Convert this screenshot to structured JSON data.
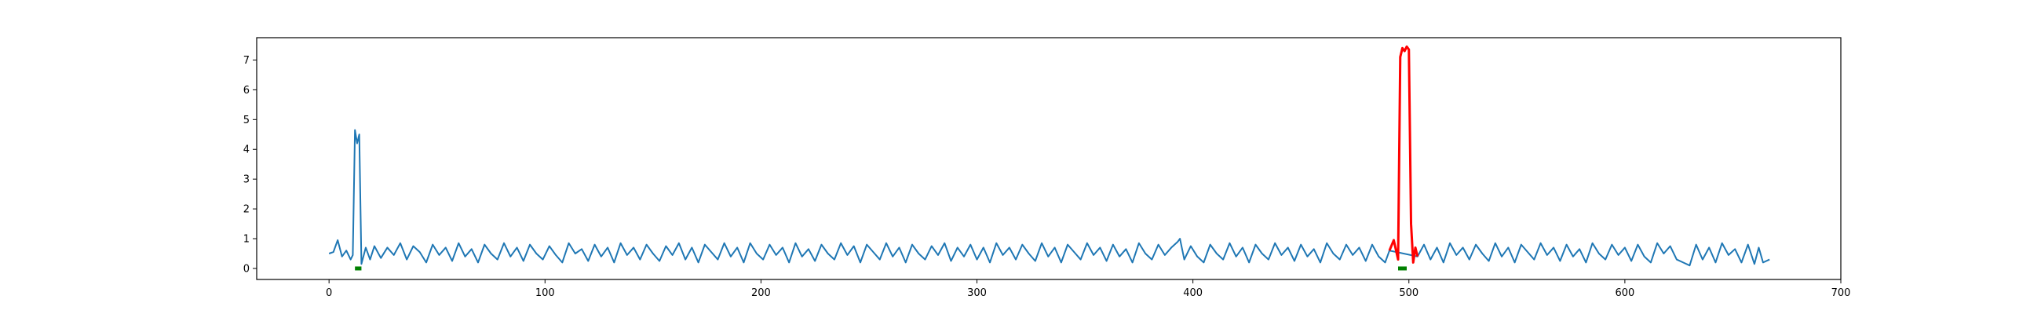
{
  "chart_data": {
    "type": "line",
    "title": "",
    "xlabel": "",
    "ylabel": "",
    "xlim": [
      -33.5,
      700
    ],
    "ylim": [
      -0.37,
      7.75
    ],
    "xticks": [
      0,
      100,
      200,
      300,
      400,
      500,
      600,
      700
    ],
    "yticks": [
      0,
      1,
      2,
      3,
      4,
      5,
      6,
      7
    ],
    "grid": false,
    "legend": "none",
    "colors": {
      "signal": "#1f77b4",
      "anomaly": "#ff0000",
      "marker": "#008000"
    },
    "series": [
      {
        "points": [
          [
            0,
            0.5
          ],
          [
            2,
            0.55
          ],
          [
            4,
            0.95
          ],
          [
            6,
            0.4
          ],
          [
            8,
            0.6
          ],
          [
            10,
            0.3
          ],
          [
            11,
            0.45
          ],
          [
            12,
            4.65
          ],
          [
            13,
            4.2
          ],
          [
            14,
            4.5
          ],
          [
            15,
            0.15
          ],
          [
            17,
            0.7
          ],
          [
            19,
            0.3
          ],
          [
            21,
            0.75
          ],
          [
            24,
            0.35
          ],
          [
            27,
            0.7
          ],
          [
            30,
            0.45
          ],
          [
            33,
            0.85
          ],
          [
            36,
            0.3
          ],
          [
            39,
            0.75
          ],
          [
            42,
            0.55
          ],
          [
            45,
            0.2
          ],
          [
            48,
            0.8
          ],
          [
            51,
            0.45
          ],
          [
            54,
            0.7
          ],
          [
            57,
            0.25
          ],
          [
            60,
            0.85
          ],
          [
            63,
            0.4
          ],
          [
            66,
            0.65
          ],
          [
            69,
            0.2
          ],
          [
            72,
            0.8
          ],
          [
            75,
            0.5
          ],
          [
            78,
            0.3
          ],
          [
            81,
            0.85
          ],
          [
            84,
            0.4
          ],
          [
            87,
            0.7
          ],
          [
            90,
            0.25
          ],
          [
            93,
            0.8
          ],
          [
            96,
            0.5
          ],
          [
            99,
            0.3
          ],
          [
            102,
            0.75
          ],
          [
            105,
            0.45
          ],
          [
            108,
            0.2
          ],
          [
            111,
            0.85
          ],
          [
            114,
            0.5
          ],
          [
            117,
            0.65
          ],
          [
            120,
            0.25
          ],
          [
            123,
            0.8
          ],
          [
            126,
            0.4
          ],
          [
            129,
            0.7
          ],
          [
            132,
            0.2
          ],
          [
            135,
            0.85
          ],
          [
            138,
            0.45
          ],
          [
            141,
            0.7
          ],
          [
            144,
            0.3
          ],
          [
            147,
            0.8
          ],
          [
            150,
            0.5
          ],
          [
            153,
            0.25
          ],
          [
            156,
            0.75
          ],
          [
            159,
            0.45
          ],
          [
            162,
            0.85
          ],
          [
            165,
            0.3
          ],
          [
            168,
            0.7
          ],
          [
            171,
            0.2
          ],
          [
            174,
            0.8
          ],
          [
            177,
            0.55
          ],
          [
            180,
            0.3
          ],
          [
            183,
            0.85
          ],
          [
            186,
            0.4
          ],
          [
            189,
            0.7
          ],
          [
            192,
            0.2
          ],
          [
            195,
            0.85
          ],
          [
            198,
            0.5
          ],
          [
            201,
            0.3
          ],
          [
            204,
            0.8
          ],
          [
            207,
            0.45
          ],
          [
            210,
            0.7
          ],
          [
            213,
            0.2
          ],
          [
            216,
            0.85
          ],
          [
            219,
            0.4
          ],
          [
            222,
            0.65
          ],
          [
            225,
            0.25
          ],
          [
            228,
            0.8
          ],
          [
            231,
            0.5
          ],
          [
            234,
            0.3
          ],
          [
            237,
            0.85
          ],
          [
            240,
            0.45
          ],
          [
            243,
            0.75
          ],
          [
            246,
            0.2
          ],
          [
            249,
            0.8
          ],
          [
            252,
            0.55
          ],
          [
            255,
            0.3
          ],
          [
            258,
            0.85
          ],
          [
            261,
            0.4
          ],
          [
            264,
            0.7
          ],
          [
            267,
            0.2
          ],
          [
            270,
            0.8
          ],
          [
            273,
            0.5
          ],
          [
            276,
            0.3
          ],
          [
            279,
            0.75
          ],
          [
            282,
            0.45
          ],
          [
            285,
            0.85
          ],
          [
            288,
            0.25
          ],
          [
            291,
            0.7
          ],
          [
            294,
            0.4
          ],
          [
            297,
            0.8
          ],
          [
            300,
            0.3
          ],
          [
            303,
            0.7
          ],
          [
            306,
            0.2
          ],
          [
            309,
            0.85
          ],
          [
            312,
            0.45
          ],
          [
            315,
            0.7
          ],
          [
            318,
            0.3
          ],
          [
            321,
            0.8
          ],
          [
            324,
            0.5
          ],
          [
            327,
            0.25
          ],
          [
            330,
            0.85
          ],
          [
            333,
            0.4
          ],
          [
            336,
            0.7
          ],
          [
            339,
            0.2
          ],
          [
            342,
            0.8
          ],
          [
            345,
            0.55
          ],
          [
            348,
            0.3
          ],
          [
            351,
            0.85
          ],
          [
            354,
            0.45
          ],
          [
            357,
            0.7
          ],
          [
            360,
            0.25
          ],
          [
            363,
            0.8
          ],
          [
            366,
            0.4
          ],
          [
            369,
            0.65
          ],
          [
            372,
            0.2
          ],
          [
            375,
            0.85
          ],
          [
            378,
            0.5
          ],
          [
            381,
            0.3
          ],
          [
            384,
            0.8
          ],
          [
            387,
            0.45
          ],
          [
            390,
            0.7
          ],
          [
            393,
            0.9
          ],
          [
            394,
            1.0
          ],
          [
            396,
            0.3
          ],
          [
            399,
            0.75
          ],
          [
            402,
            0.4
          ],
          [
            405,
            0.2
          ],
          [
            408,
            0.8
          ],
          [
            411,
            0.5
          ],
          [
            414,
            0.3
          ],
          [
            417,
            0.85
          ],
          [
            420,
            0.4
          ],
          [
            423,
            0.7
          ],
          [
            426,
            0.2
          ],
          [
            429,
            0.8
          ],
          [
            432,
            0.5
          ],
          [
            435,
            0.3
          ],
          [
            438,
            0.85
          ],
          [
            441,
            0.45
          ],
          [
            444,
            0.7
          ],
          [
            447,
            0.25
          ],
          [
            450,
            0.8
          ],
          [
            453,
            0.4
          ],
          [
            456,
            0.65
          ],
          [
            459,
            0.2
          ],
          [
            462,
            0.85
          ],
          [
            465,
            0.5
          ],
          [
            468,
            0.3
          ],
          [
            471,
            0.8
          ],
          [
            474,
            0.45
          ],
          [
            477,
            0.7
          ],
          [
            480,
            0.25
          ],
          [
            483,
            0.8
          ],
          [
            486,
            0.4
          ],
          [
            489,
            0.2
          ],
          [
            491,
            0.6
          ],
          [
            504,
            0.4
          ],
          [
            507,
            0.8
          ],
          [
            510,
            0.3
          ],
          [
            513,
            0.7
          ],
          [
            516,
            0.2
          ],
          [
            519,
            0.85
          ],
          [
            522,
            0.45
          ],
          [
            525,
            0.7
          ],
          [
            528,
            0.3
          ],
          [
            531,
            0.8
          ],
          [
            534,
            0.5
          ],
          [
            537,
            0.25
          ],
          [
            540,
            0.85
          ],
          [
            543,
            0.4
          ],
          [
            546,
            0.7
          ],
          [
            549,
            0.2
          ],
          [
            552,
            0.8
          ],
          [
            555,
            0.55
          ],
          [
            558,
            0.3
          ],
          [
            561,
            0.85
          ],
          [
            564,
            0.45
          ],
          [
            567,
            0.7
          ],
          [
            570,
            0.25
          ],
          [
            573,
            0.8
          ],
          [
            576,
            0.4
          ],
          [
            579,
            0.65
          ],
          [
            582,
            0.2
          ],
          [
            585,
            0.85
          ],
          [
            588,
            0.5
          ],
          [
            591,
            0.3
          ],
          [
            594,
            0.8
          ],
          [
            597,
            0.45
          ],
          [
            600,
            0.7
          ],
          [
            603,
            0.25
          ],
          [
            606,
            0.8
          ],
          [
            609,
            0.4
          ],
          [
            612,
            0.2
          ],
          [
            615,
            0.85
          ],
          [
            618,
            0.5
          ],
          [
            621,
            0.75
          ],
          [
            624,
            0.3
          ],
          [
            627,
            0.2
          ],
          [
            630,
            0.1
          ],
          [
            633,
            0.8
          ],
          [
            636,
            0.3
          ],
          [
            639,
            0.7
          ],
          [
            642,
            0.2
          ],
          [
            645,
            0.85
          ],
          [
            648,
            0.45
          ],
          [
            651,
            0.65
          ],
          [
            654,
            0.2
          ],
          [
            657,
            0.8
          ],
          [
            660,
            0.15
          ],
          [
            662,
            0.7
          ],
          [
            664,
            0.2
          ],
          [
            667,
            0.3
          ]
        ]
      },
      {
        "points": [
          [
            491,
            0.6
          ],
          [
            493,
            0.95
          ],
          [
            495,
            0.3
          ],
          [
            496,
            7.1
          ],
          [
            497,
            7.4
          ],
          [
            498,
            7.3
          ],
          [
            499,
            7.45
          ],
          [
            500,
            7.35
          ],
          [
            501,
            1.5
          ],
          [
            502,
            0.2
          ],
          [
            503,
            0.7
          ],
          [
            504,
            0.4
          ]
        ]
      }
    ],
    "markers": [
      {
        "x": [
          12,
          15
        ],
        "y": 0
      },
      {
        "x": [
          495,
          499
        ],
        "y": 0
      }
    ]
  }
}
